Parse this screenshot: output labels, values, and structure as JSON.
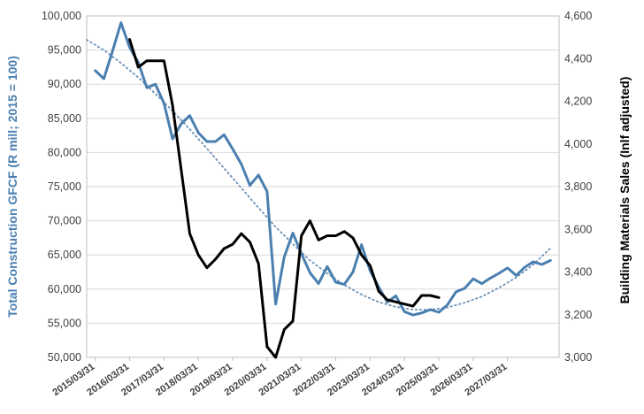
{
  "chart_data": {
    "type": "line",
    "y_left": {
      "label": "Total Construction GFCF (R mill; 2015 = 100)",
      "range": [
        50000,
        100000
      ],
      "ticks": [
        "50,000",
        "55,000",
        "60,000",
        "65,000",
        "70,000",
        "75,000",
        "80,000",
        "85,000",
        "90,000",
        "95,000",
        "100,000"
      ],
      "tick_values": [
        50000,
        55000,
        60000,
        65000,
        70000,
        75000,
        80000,
        85000,
        90000,
        95000,
        100000
      ],
      "color": "#4a7fb0"
    },
    "y_right": {
      "label": "Building Materials Sales (Inlf adjusted)",
      "range": [
        3000,
        4600
      ],
      "ticks": [
        "3,000",
        "3,200",
        "3,400",
        "3,600",
        "3,800",
        "4,000",
        "4,200",
        "4,400",
        "4,600"
      ],
      "tick_values": [
        3000,
        3200,
        3400,
        3600,
        3800,
        4000,
        4200,
        4400,
        4600
      ],
      "color": "#000000"
    },
    "x_axis": {
      "range": [
        2015.0,
        2028.75
      ],
      "ticks": [
        "2015/03/31",
        "2016/03/31",
        "2017/03/31",
        "2018/03/31",
        "2019/03/31",
        "2020/03/31",
        "2021/03/31",
        "2022/03/31",
        "2023/03/31",
        "2024/03/31",
        "2025/03/31",
        "2026/03/31",
        "2027/03/31"
      ],
      "tick_values": [
        2015.25,
        2016.25,
        2017.25,
        2018.25,
        2019.25,
        2020.25,
        2021.25,
        2022.25,
        2023.25,
        2024.25,
        2025.25,
        2026.25,
        2027.25
      ]
    },
    "series": [
      {
        "axis": "left",
        "color": "#4a7fb0",
        "style": "solid",
        "x": [
          2015.25,
          2015.5,
          2015.75,
          2016.0,
          2016.25,
          2016.5,
          2016.75,
          2017.0,
          2017.25,
          2017.5,
          2017.75,
          2018.0,
          2018.25,
          2018.5,
          2018.75,
          2019.0,
          2019.25,
          2019.5,
          2019.75,
          2020.0,
          2020.25,
          2020.5,
          2020.75,
          2021.0,
          2021.25,
          2021.5,
          2021.75,
          2022.0,
          2022.25,
          2022.5,
          2022.75,
          2023.0,
          2023.25,
          2023.5,
          2023.75,
          2024.0,
          2024.25,
          2024.5,
          2024.75,
          2025.0,
          2025.25,
          2025.5,
          2025.75,
          2026.0,
          2026.25,
          2026.5,
          2026.75,
          2027.0,
          2027.25,
          2027.5,
          2027.75,
          2028.0,
          2028.25,
          2028.5
        ],
        "y": [
          92000,
          90800,
          94800,
          99000,
          95400,
          93200,
          89500,
          90000,
          87200,
          82000,
          84200,
          85400,
          82900,
          81600,
          81600,
          82600,
          80500,
          78300,
          75200,
          76700,
          74300,
          57800,
          64700,
          68200,
          65200,
          62400,
          60800,
          63300,
          61000,
          60700,
          62500,
          66500,
          62700,
          60300,
          58100,
          59000,
          56700,
          56200,
          56500,
          57000,
          56600,
          57700,
          59600,
          60100,
          61500,
          60800,
          61600,
          62300,
          63100,
          62000,
          63200,
          64000,
          63600,
          64200
        ]
      },
      {
        "axis": "right",
        "color": "#000000",
        "style": "solid",
        "x": [
          2016.25,
          2016.5,
          2016.75,
          2017.0,
          2017.25,
          2017.5,
          2017.75,
          2018.0,
          2018.25,
          2018.5,
          2018.75,
          2019.0,
          2019.25,
          2019.5,
          2019.75,
          2020.0,
          2020.25,
          2020.5,
          2020.75,
          2021.0,
          2021.25,
          2021.5,
          2021.75,
          2022.0,
          2022.25,
          2022.5,
          2022.75,
          2023.0,
          2023.25,
          2023.5,
          2023.75,
          2024.0,
          2024.25,
          2024.5,
          2024.75,
          2025.0,
          2025.25
        ],
        "y": [
          4490,
          4360,
          4390,
          4390,
          4390,
          4180,
          3880,
          3580,
          3480,
          3420,
          3460,
          3510,
          3530,
          3580,
          3540,
          3440,
          3050,
          3000,
          3130,
          3170,
          3570,
          3640,
          3550,
          3570,
          3570,
          3590,
          3560,
          3480,
          3430,
          3310,
          3270,
          3260,
          3250,
          3240,
          3290,
          3290,
          3280
        ]
      },
      {
        "axis": "left",
        "color": "#6b8fb3",
        "style": "dotted",
        "type": "trendline",
        "x": [
          2015.0,
          2015.5,
          2016.0,
          2016.5,
          2017.0,
          2017.5,
          2018.0,
          2018.5,
          2019.0,
          2019.5,
          2020.0,
          2020.5,
          2021.0,
          2021.5,
          2022.0,
          2022.5,
          2023.0,
          2023.5,
          2024.0,
          2024.5,
          2025.0,
          2025.5,
          2026.0,
          2026.5,
          2027.0,
          2027.5,
          2028.0,
          2028.5
        ],
        "y": [
          96500,
          95000,
          93100,
          91000,
          88600,
          86100,
          83400,
          80600,
          77700,
          74800,
          71900,
          69100,
          66600,
          64200,
          62300,
          60600,
          59200,
          58100,
          57400,
          57000,
          57000,
          57300,
          58000,
          58900,
          60200,
          61700,
          63600,
          66000
        ]
      }
    ]
  }
}
